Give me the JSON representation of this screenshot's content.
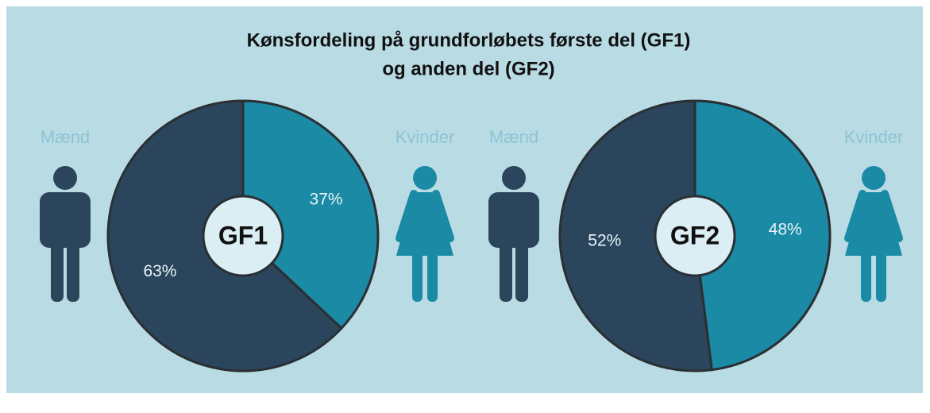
{
  "title": "Kønsfordeling på grundforløbets første del (GF1)",
  "subtitle": "og anden del (GF2)",
  "chart_data": [
    {
      "type": "pie",
      "center_label": "GF1",
      "categories": [
        "Mænd",
        "Kvinder"
      ],
      "values": [
        63,
        37
      ],
      "value_labels": [
        "63%",
        "37%"
      ],
      "colors": [
        "#2b465c",
        "#1b8aa5"
      ]
    },
    {
      "type": "pie",
      "center_label": "GF2",
      "categories": [
        "Mænd",
        "Kvinder"
      ],
      "values": [
        52,
        48
      ],
      "value_labels": [
        "52%",
        "48%"
      ],
      "colors": [
        "#2b465c",
        "#1b8aa5"
      ]
    }
  ]
}
